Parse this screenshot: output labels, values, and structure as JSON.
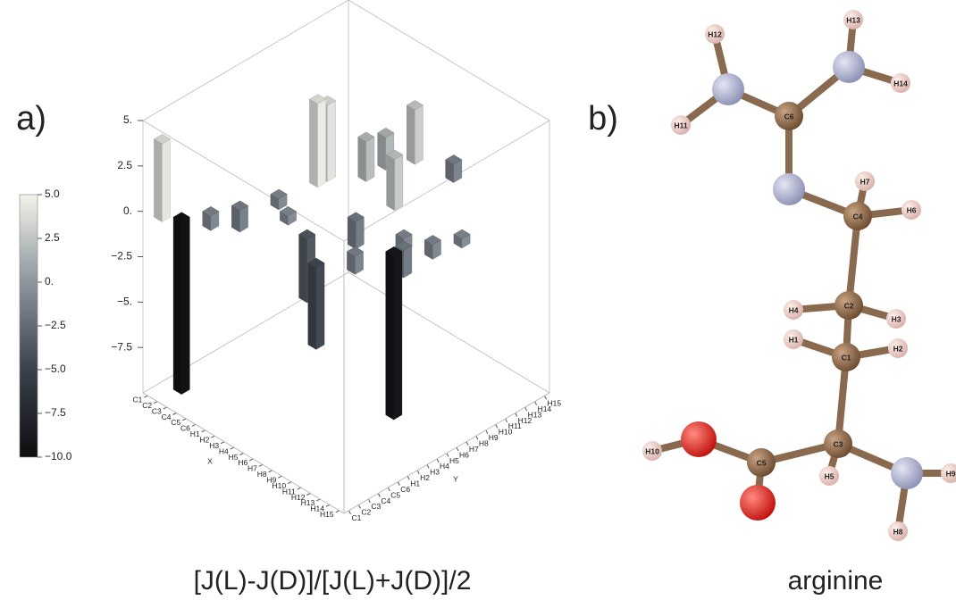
{
  "chart_data": {
    "type": "bar3d",
    "panel_label": "a)",
    "title": "[J(L)-J(D)]/[J(L)+J(D)]/2",
    "xlabel": "X",
    "ylabel": "Y",
    "xcategories": [
      "C1",
      "C2",
      "C3",
      "C4",
      "C5",
      "C6",
      "H1",
      "H2",
      "H3",
      "H4",
      "H5",
      "H6",
      "H7",
      "H8",
      "H9",
      "H10",
      "H11",
      "H12",
      "H13",
      "H14",
      "H15"
    ],
    "ycategories": [
      "C1",
      "C2",
      "C3",
      "C4",
      "C5",
      "C6",
      "H1",
      "H2",
      "H3",
      "H4",
      "H5",
      "H6",
      "H7",
      "H8",
      "H9",
      "H10",
      "H11",
      "H12",
      "H13",
      "H14",
      "H15"
    ],
    "zlim": [
      -10,
      5
    ],
    "zticks": [
      {
        "value": 5,
        "label": "5."
      },
      2.5,
      {
        "value": 0,
        "label": "0."
      },
      {
        "value": -2.5,
        "label": "−2.5"
      },
      {
        "value": -5,
        "label": "−5."
      },
      {
        "value": -7.5,
        "label": "−7.5"
      }
    ],
    "clim": [
      -10,
      5
    ],
    "colormap": [
      "#0d0d0f",
      "#3b414c",
      "#8d959d",
      "#f3f3eb"
    ],
    "colorbar_ticks": [
      {
        "value": 5,
        "label": "5.0"
      },
      2.5,
      {
        "value": 0,
        "label": "0."
      },
      {
        "value": -2.5,
        "label": "−2.5"
      },
      {
        "value": -5,
        "label": "−5.0"
      },
      {
        "value": -7.5,
        "label": "−7.5"
      },
      {
        "value": -10,
        "label": "−10.0"
      }
    ],
    "bars": [
      {
        "x": "C2",
        "y": "C1",
        "value": 4.3
      },
      {
        "x": "C3",
        "y": "C2",
        "value": -9.5
      },
      {
        "x": "C4",
        "y": "C4",
        "value": -0.8
      },
      {
        "x": "C5",
        "y": "C6",
        "value": -1.2
      },
      {
        "x": "C6",
        "y": "H3",
        "value": -0.6
      },
      {
        "x": "H1",
        "y": "H6",
        "value": 4.6
      },
      {
        "x": "H1",
        "y": "H7",
        "value": 4.2
      },
      {
        "x": "H2",
        "y": "H2",
        "value": -0.5
      },
      {
        "x": "H3",
        "y": "H9",
        "value": 2.2
      },
      {
        "x": "H3",
        "y": "H11",
        "value": 1.8
      },
      {
        "x": "H4",
        "y": "H13",
        "value": 3.0
      },
      {
        "x": "H5",
        "y": "H1",
        "value": -3.5
      },
      {
        "x": "H6",
        "y": "H5",
        "value": -1.5
      },
      {
        "x": "H6",
        "y": "H15",
        "value": -1.0
      },
      {
        "x": "H7",
        "y": "H8",
        "value": 2.8
      },
      {
        "x": "H8",
        "y": "C5",
        "value": -4.5
      },
      {
        "x": "H9",
        "y": "H2",
        "value": -1.0
      },
      {
        "x": "H10",
        "y": "H6",
        "value": -0.7
      },
      {
        "x": "H11",
        "y": "H4",
        "value": -9.0
      },
      {
        "x": "H11",
        "y": "H5",
        "value": -1.5
      },
      {
        "x": "H12",
        "y": "H7",
        "value": -0.8
      },
      {
        "x": "H13",
        "y": "H9",
        "value": -0.5
      }
    ]
  },
  "molecule": {
    "panel_label": "b)",
    "name": "arginine",
    "atoms": [
      "H12",
      "H13",
      "H11",
      "C6",
      "H14",
      "H7",
      "H6",
      "C4",
      "H4",
      "C2",
      "H3",
      "H1",
      "C1",
      "H2",
      "H10",
      "C5",
      "C3",
      "H5",
      "H9",
      "H8"
    ]
  }
}
